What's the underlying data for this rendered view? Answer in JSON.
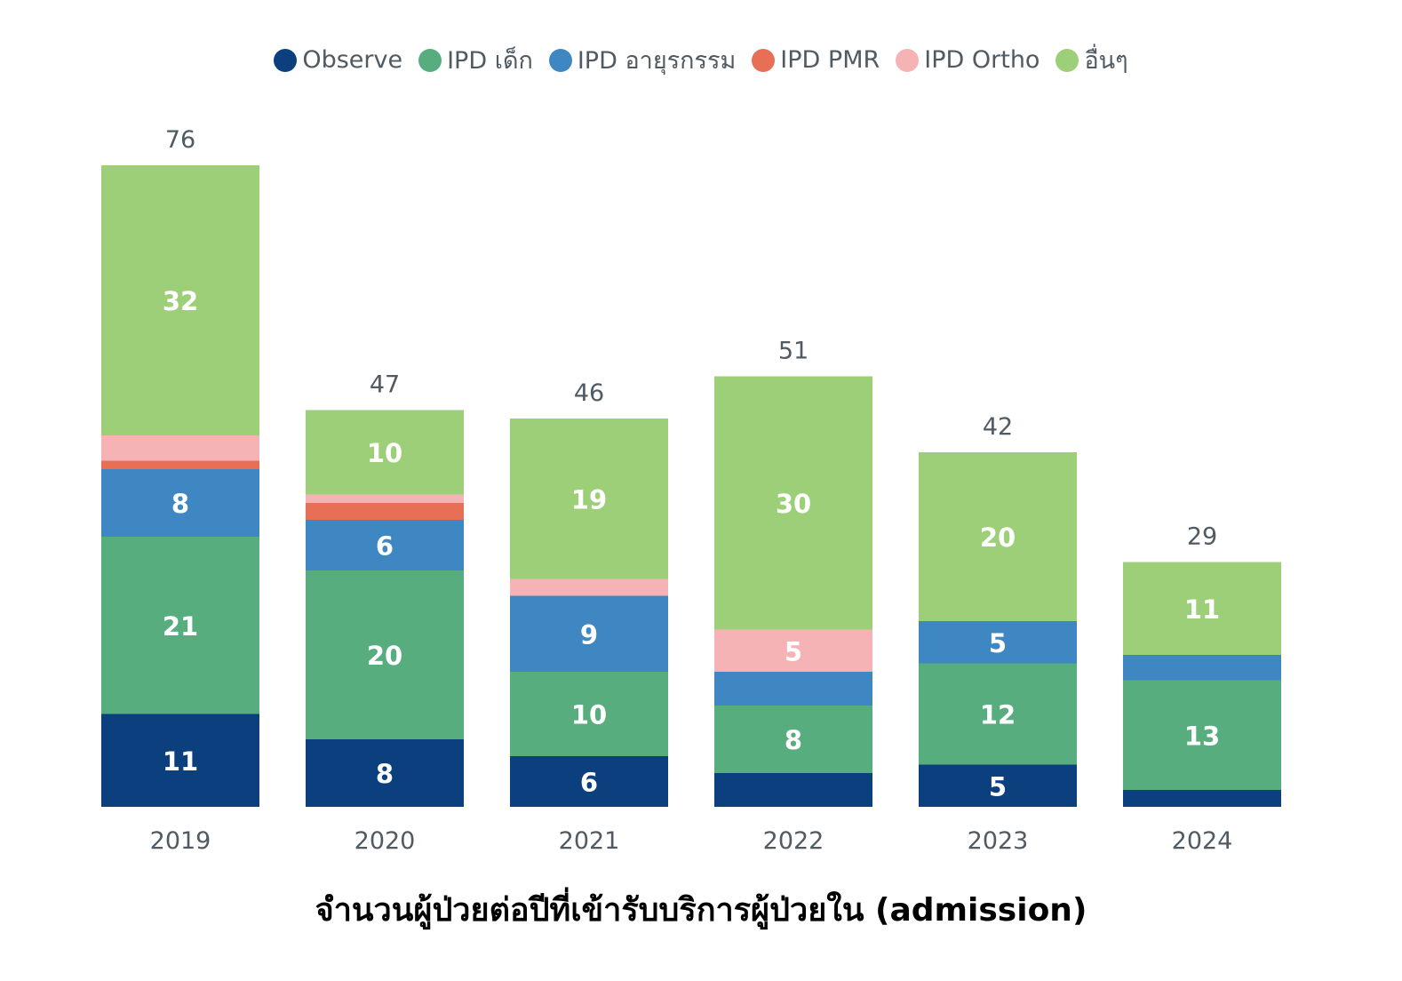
{
  "caption": "จำนวนผู้ป่วยต่อปีที่เข้ารับบริการผู้ป่วยใน (admission)",
  "chart_data": {
    "type": "bar",
    "stacked": true,
    "categories": [
      "2019",
      "2020",
      "2021",
      "2022",
      "2023",
      "2024"
    ],
    "totals": [
      76,
      47,
      46,
      51,
      42,
      29
    ],
    "series": [
      {
        "name": "Observe",
        "color": "#0b3f7e",
        "values": [
          11,
          8,
          6,
          4,
          5,
          2
        ],
        "labels": [
          "11",
          "8",
          "6",
          "",
          "5",
          ""
        ]
      },
      {
        "name": "IPD เด็ก",
        "color": "#57ad7e",
        "values": [
          21,
          20,
          10,
          8,
          12,
          13
        ],
        "labels": [
          "21",
          "20",
          "10",
          "8",
          "12",
          "13"
        ]
      },
      {
        "name": "IPD อายุรกรรม",
        "color": "#3f87c3",
        "values": [
          8,
          6,
          9,
          4,
          5,
          3
        ],
        "labels": [
          "8",
          "6",
          "9",
          "",
          "5",
          ""
        ]
      },
      {
        "name": "IPD PMR",
        "color": "#e66f55",
        "values": [
          1,
          2,
          0,
          0,
          0,
          0
        ],
        "labels": [
          "",
          "",
          "",
          "",
          "",
          ""
        ]
      },
      {
        "name": "IPD Ortho",
        "color": "#f6b3b6",
        "values": [
          3,
          1,
          2,
          5,
          0,
          0
        ],
        "labels": [
          "",
          "",
          "",
          "5",
          "",
          ""
        ]
      },
      {
        "name": "อื่นๆ",
        "color": "#9dcf78",
        "values": [
          32,
          10,
          19,
          30,
          20,
          11
        ],
        "labels": [
          "32",
          "10",
          "19",
          "30",
          "20",
          "11"
        ]
      }
    ],
    "legend_position": "top-center",
    "grid": false
  }
}
